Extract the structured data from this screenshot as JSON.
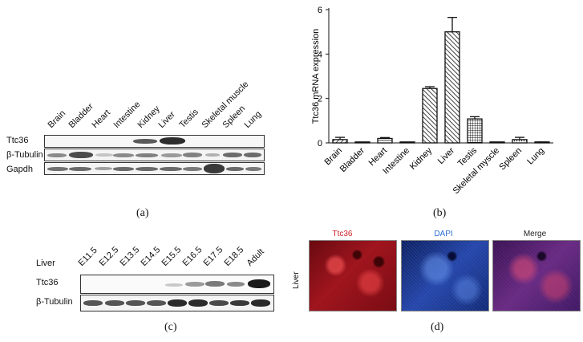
{
  "panel_a": {
    "caption": "(a)",
    "lanes": [
      "Brain",
      "Bladder",
      "Heart",
      "Intestine",
      "Kidney",
      "Liver",
      "Testis",
      "Skeletal muscle",
      "Spleen",
      "Lung"
    ],
    "rows": [
      "Ttc36",
      "β-Tubulin",
      "Gapdh"
    ]
  },
  "panel_b": {
    "caption": "(b)"
  },
  "panel_c": {
    "caption": "(c)",
    "tissue": "Liver",
    "lanes": [
      "E11.5",
      "E12.5",
      "E13.5",
      "E14.5",
      "E15.5",
      "E16.5",
      "E17.5",
      "E18.5",
      "Adult"
    ],
    "rows": [
      "Ttc36",
      "β-Tubulin"
    ]
  },
  "panel_d": {
    "caption": "(d)",
    "row_label": "Liver",
    "panels": [
      "Ttc36",
      "DAPI",
      "Merge"
    ],
    "colors": {
      "ttc36": "#d0202a",
      "dapi": "#2a6fd6",
      "merge": "#222222"
    }
  },
  "chart_data": {
    "type": "bar",
    "categories": [
      "Brain",
      "Bladder",
      "Heart",
      "Intestine",
      "Kidney",
      "Liver",
      "Testis",
      "Skeletal myscle",
      "Spleen",
      "Lung"
    ],
    "values": [
      0.15,
      0.0,
      0.2,
      0.02,
      2.45,
      5.0,
      1.08,
      0.0,
      0.15,
      0.03
    ],
    "errors": [
      0.1,
      0.0,
      0.04,
      0.01,
      0.08,
      0.65,
      0.1,
      0.0,
      0.1,
      0.01
    ],
    "title": "",
    "xlabel": "",
    "ylabel": "Ttc36 mRNA expression",
    "ylim": [
      0,
      6
    ],
    "yticks": [
      0,
      2,
      4,
      6
    ],
    "grid": false
  }
}
